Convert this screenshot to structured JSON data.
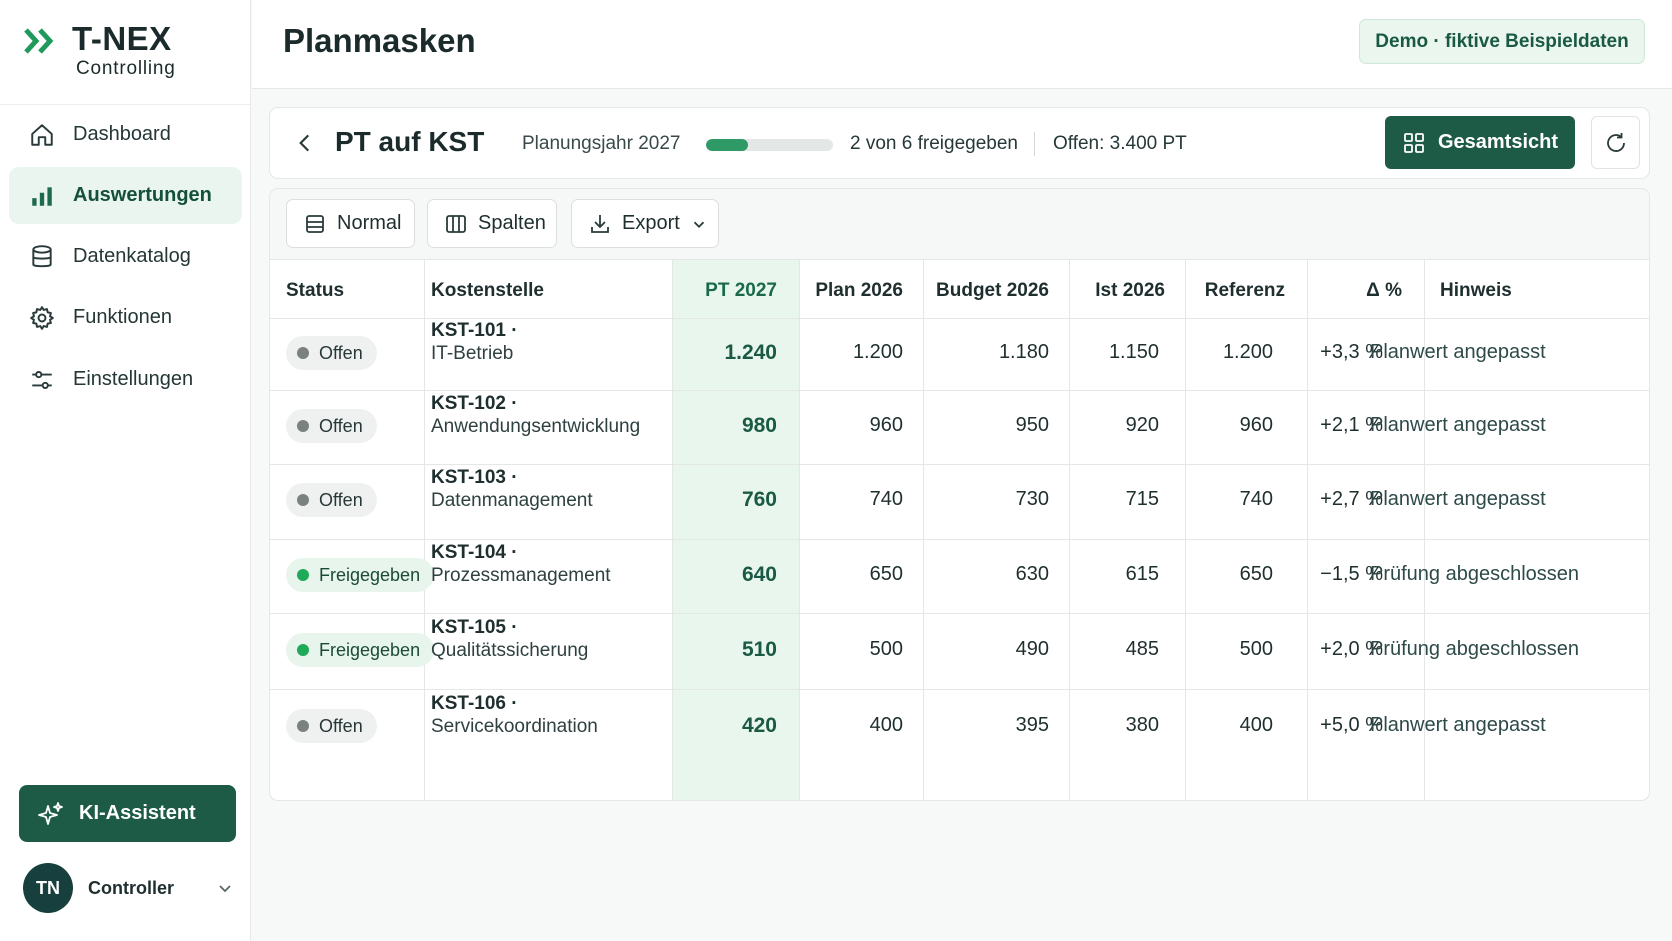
{
  "app": {
    "logo_name": "T-NEX",
    "logo_sub": "Controlling"
  },
  "sidebar": {
    "items": [
      {
        "label": "Dashboard",
        "icon": "home-icon",
        "active": false
      },
      {
        "label": "Auswertungen",
        "icon": "bar-chart-icon",
        "active": true
      },
      {
        "label": "Datenkatalog",
        "icon": "database-icon",
        "active": false
      },
      {
        "label": "Funktionen",
        "icon": "gear-icon",
        "active": false
      },
      {
        "label": "Einstellungen",
        "icon": "sliders-icon",
        "active": false
      }
    ],
    "ki_label": "KI-Assistent",
    "user": {
      "initials": "TN",
      "role": "Controller"
    }
  },
  "topbar": {
    "title": "Planmasken",
    "demo_badge": "Demo · fiktive Beispieldaten"
  },
  "header": {
    "title": "PT auf KST",
    "plan_year": "Planungsjahr 2027",
    "approved_text": "2 von 6 freigegeben",
    "approved_fraction": 0.33,
    "open_text": "Offen: 3.400 PT",
    "overview_label": "Gesamtsicht"
  },
  "toolbar": {
    "normal_label": "Normal",
    "columns_label": "Spalten",
    "export_label": "Export"
  },
  "table": {
    "headers": [
      "Status",
      "Kostenstelle",
      "PT 2027",
      "Plan 2026",
      "Budget 2026",
      "Ist 2026",
      "Referenz",
      "Δ %",
      "Hinweis"
    ],
    "rows": [
      {
        "status": "Offen",
        "code": "KST-101 ·",
        "name": "IT-Betrieb",
        "pt": "1.240",
        "plan": "1.200",
        "budget": "1.180",
        "ist": "1.150",
        "ref": "1.200",
        "delta": "+3,3 %",
        "hint": "Planwert angepasst"
      },
      {
        "status": "Offen",
        "code": "KST-102 ·",
        "name": "Anwendungsentwicklung",
        "pt": "980",
        "plan": "960",
        "budget": "950",
        "ist": "920",
        "ref": "960",
        "delta": "+2,1 %",
        "hint": "Planwert angepasst"
      },
      {
        "status": "Offen",
        "code": "KST-103 ·",
        "name": "Datenmanagement",
        "pt": "760",
        "plan": "740",
        "budget": "730",
        "ist": "715",
        "ref": "740",
        "delta": "+2,7 %",
        "hint": "Planwert angepasst"
      },
      {
        "status": "Freigegeben",
        "code": "KST-104 ·",
        "name": "Prozessmanagement",
        "pt": "640",
        "plan": "650",
        "budget": "630",
        "ist": "615",
        "ref": "650",
        "delta": "−1,5 %",
        "hint": "Prüfung abgeschlossen"
      },
      {
        "status": "Freigegeben",
        "code": "KST-105 ·",
        "name": "Qualitätssicherung",
        "pt": "510",
        "plan": "500",
        "budget": "490",
        "ist": "485",
        "ref": "500",
        "delta": "+2,0 %",
        "hint": "Prüfung abgeschlossen"
      },
      {
        "status": "Offen",
        "code": "KST-106 ·",
        "name": "Servicekoordination",
        "pt": "420",
        "plan": "400",
        "budget": "395",
        "ist": "380",
        "ref": "400",
        "delta": "+5,0 %",
        "hint": "Planwert angepasst"
      }
    ]
  },
  "colors": {
    "primary": "#1d5b46",
    "accent": "#2f9a66",
    "pt_column": "#e9f6ee",
    "status_open": "#7b8180",
    "status_done": "#1faa5a"
  }
}
